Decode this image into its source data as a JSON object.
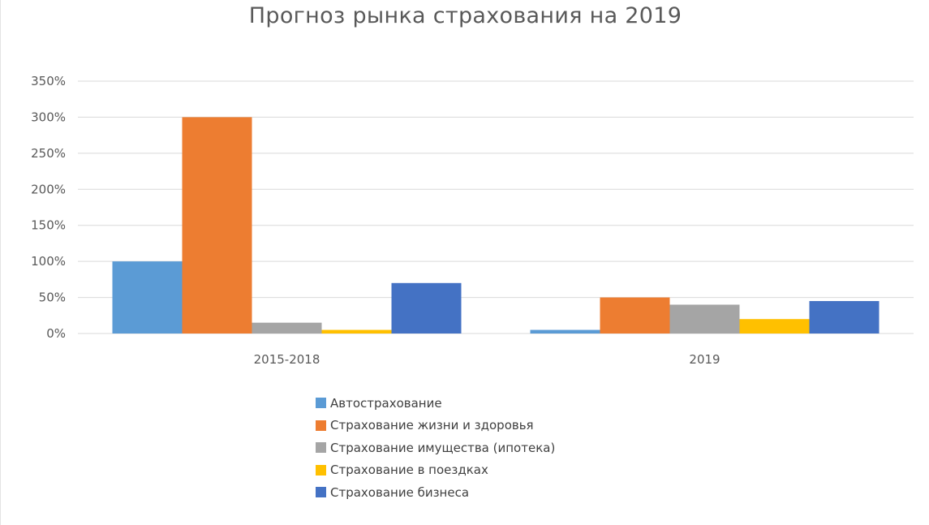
{
  "chart_data": {
    "type": "bar",
    "title": "Прогноз рынка страхования на 2019",
    "categories": [
      "2015-2018",
      "2019"
    ],
    "series": [
      {
        "name": "Автострахование",
        "values": [
          100,
          5
        ],
        "color": "#5b9bd5"
      },
      {
        "name": "Страхование жизни и здоровья",
        "values": [
          300,
          50
        ],
        "color": "#ed7d31"
      },
      {
        "name": "Страхование имущества (ипотека)",
        "values": [
          15,
          40
        ],
        "color": "#a5a5a5"
      },
      {
        "name": "Страхование в поездках",
        "values": [
          5,
          20
        ],
        "color": "#ffc000"
      },
      {
        "name": "Страхование бизнеса",
        "values": [
          70,
          45
        ],
        "color": "#4472c4"
      }
    ],
    "yticks": [
      "0%",
      "50%",
      "100%",
      "150%",
      "200%",
      "250%",
      "300%",
      "350%"
    ],
    "ylim": [
      0,
      350
    ],
    "unit": "%",
    "grid": true,
    "legend_position": "bottom"
  }
}
